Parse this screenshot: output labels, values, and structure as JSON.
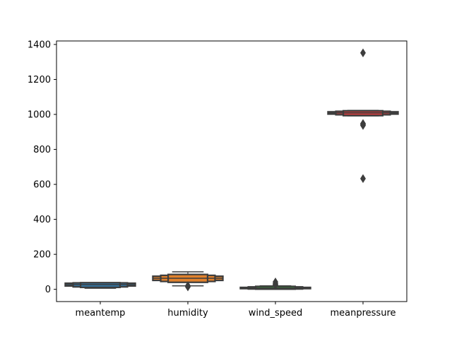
{
  "chart_data": {
    "type": "boxen",
    "title": "",
    "xlabel": "",
    "ylabel": "",
    "categories": [
      "meantemp",
      "humidity",
      "wind_speed",
      "meanpressure"
    ],
    "ylim": [
      -70,
      1420
    ],
    "yticks": [
      0,
      200,
      400,
      600,
      800,
      1000,
      1200,
      1400
    ],
    "grid": false,
    "colors": {
      "meantemp": "#3274a1",
      "humidity": "#e1812c",
      "wind_speed": "#3a923a",
      "meanpressure": "#c03d3e",
      "outline": "#3d3d3d"
    },
    "series": [
      {
        "category": "meantemp",
        "median": 27,
        "box_levels": [
          [
            19,
            35
          ],
          [
            14,
            37
          ],
          [
            11,
            38
          ]
        ],
        "whiskers": [
          6,
          38
        ],
        "outliers": []
      },
      {
        "category": "humidity",
        "median": 63,
        "box_levels": [
          [
            51,
            75
          ],
          [
            45,
            80
          ],
          [
            40,
            85
          ]
        ],
        "whiskers": [
          20,
          100
        ],
        "outliers": [
          14,
          18,
          21
        ]
      },
      {
        "category": "wind_speed",
        "median": 7,
        "box_levels": [
          [
            4,
            11
          ],
          [
            2,
            14
          ],
          [
            1,
            17
          ]
        ],
        "whiskers": [
          0,
          20
        ],
        "outliers": [
          25,
          28,
          33,
          42
        ]
      },
      {
        "category": "meanpressure",
        "median": 1009,
        "box_levels": [
          [
            1002,
            1015
          ],
          [
            998,
            1018
          ],
          [
            993,
            1021
          ]
        ],
        "whiskers": [
          992,
          1023
        ],
        "outliers": [
          1352,
          948,
          945,
          940,
          937,
          633
        ]
      }
    ]
  }
}
